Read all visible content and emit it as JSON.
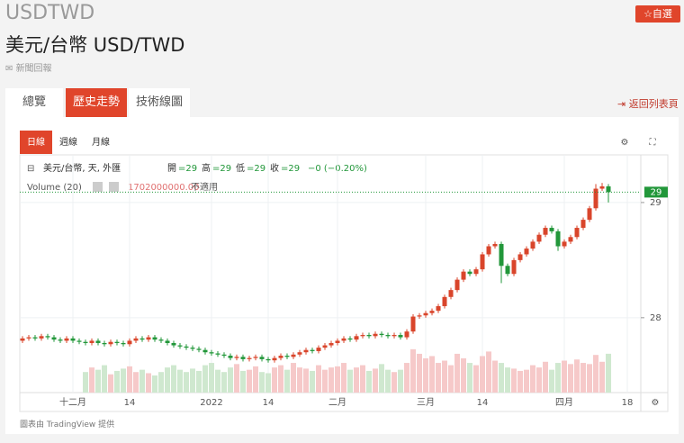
{
  "header": {
    "symbol": "USDTWD",
    "title": "美元/台幣 USD/TWD",
    "watch": "☆自選",
    "news": "新聞回報",
    "tabs": [
      "總覽",
      "歷史走勢",
      "技術線圖"
    ],
    "back": "返回列表頁"
  },
  "chart_data": {
    "type": "candlestick",
    "intervals": [
      "日線",
      "週線",
      "月線"
    ],
    "legend_name": "美元/台幣, 天, 外匯",
    "ohlc_labels": [
      {
        "key": "開",
        "value": "=29"
      },
      {
        "key": "高",
        "value": "=29"
      },
      {
        "key": "低",
        "value": "=29"
      },
      {
        "key": "收",
        "value": "=29"
      }
    ],
    "change": "−0 (−0.20%)",
    "volume_name": "Volume (20)",
    "volume_value": "1702000000.00",
    "volume_na": "不適用",
    "price_label": "29",
    "up_color": "#d9452b",
    "down_color": "#22973a",
    "volume_up_color": "#f6c9c9",
    "volume_down_color": "#cfe8cf",
    "grid": true,
    "xlim": [
      -0.43,
      98.14
    ],
    "xticks": [
      {
        "value": 8,
        "label": "十二月"
      },
      {
        "value": 17,
        "label": "14"
      },
      {
        "value": 30,
        "label": "2022"
      },
      {
        "value": 39,
        "label": "14"
      },
      {
        "value": 50,
        "label": "二月"
      },
      {
        "value": 64,
        "label": "三月"
      },
      {
        "value": 73,
        "label": "14"
      },
      {
        "value": 86,
        "label": "四月"
      },
      {
        "value": 96,
        "label": "18"
      }
    ],
    "ylim": [
      27.35,
      29.39
    ],
    "yticks": [
      28,
      29
    ],
    "vlim": [
      0,
      10300000000
    ],
    "open": [
      27.8,
      27.82,
      27.83,
      27.82,
      27.84,
      27.83,
      27.81,
      27.8,
      27.82,
      27.8,
      27.79,
      27.78,
      27.8,
      27.78,
      27.77,
      27.79,
      27.78,
      27.77,
      27.8,
      27.82,
      27.81,
      27.83,
      27.81,
      27.8,
      27.78,
      27.76,
      27.75,
      27.74,
      27.73,
      27.72,
      27.7,
      27.69,
      27.68,
      27.67,
      27.65,
      27.66,
      27.64,
      27.65,
      27.66,
      27.64,
      27.63,
      27.65,
      27.67,
      27.66,
      27.68,
      27.7,
      27.72,
      27.71,
      27.74,
      27.76,
      27.78,
      27.8,
      27.82,
      27.81,
      27.84,
      27.85,
      27.84,
      27.86,
      27.85,
      27.84,
      27.85,
      27.83,
      27.88,
      28.01,
      28.02,
      28.04,
      28.06,
      28.1,
      28.18,
      28.24,
      28.33,
      28.4,
      28.38,
      28.42,
      28.55,
      28.62,
      28.64,
      28.45,
      28.38,
      28.5,
      28.55,
      28.6,
      28.66,
      28.72,
      28.78,
      28.75,
      28.62,
      28.66,
      28.7,
      28.78,
      28.85,
      28.95,
      29.12,
      29.14
    ],
    "high": [
      27.84,
      27.85,
      27.85,
      27.86,
      27.86,
      27.85,
      27.83,
      27.84,
      27.84,
      27.82,
      27.81,
      27.82,
      27.82,
      27.8,
      27.81,
      27.81,
      27.8,
      27.82,
      27.84,
      27.84,
      27.85,
      27.85,
      27.83,
      27.82,
      27.8,
      27.78,
      27.77,
      27.76,
      27.75,
      27.74,
      27.72,
      27.71,
      27.7,
      27.69,
      27.68,
      27.68,
      27.67,
      27.68,
      27.68,
      27.66,
      27.67,
      27.69,
      27.69,
      27.7,
      27.72,
      27.74,
      27.74,
      27.76,
      27.78,
      27.8,
      27.82,
      27.84,
      27.84,
      27.86,
      27.87,
      27.87,
      27.88,
      27.88,
      27.87,
      27.87,
      27.87,
      27.9,
      28.03,
      28.04,
      28.06,
      28.08,
      28.12,
      28.2,
      28.26,
      28.35,
      28.42,
      28.42,
      28.44,
      28.57,
      28.64,
      28.66,
      28.66,
      28.47,
      28.52,
      28.57,
      28.62,
      28.68,
      28.74,
      28.8,
      28.8,
      28.77,
      28.68,
      28.72,
      28.8,
      28.87,
      28.97,
      29.16,
      29.17,
      29.16
    ],
    "low": [
      27.78,
      27.8,
      27.8,
      27.8,
      27.81,
      27.79,
      27.78,
      27.78,
      27.78,
      27.77,
      27.76,
      27.76,
      27.76,
      27.75,
      27.75,
      27.76,
      27.75,
      27.75,
      27.78,
      27.79,
      27.79,
      27.79,
      27.78,
      27.76,
      27.74,
      27.73,
      27.72,
      27.71,
      27.7,
      27.68,
      27.67,
      27.66,
      27.65,
      27.63,
      27.63,
      27.62,
      27.62,
      27.63,
      27.62,
      27.61,
      27.61,
      27.63,
      27.64,
      27.64,
      27.66,
      27.68,
      27.69,
      27.69,
      27.72,
      27.74,
      27.76,
      27.78,
      27.79,
      27.79,
      27.82,
      27.82,
      27.82,
      27.83,
      27.82,
      27.82,
      27.81,
      27.81,
      27.86,
      27.99,
      28.0,
      28.02,
      28.04,
      28.08,
      28.16,
      28.22,
      28.31,
      28.36,
      28.36,
      28.4,
      28.53,
      28.6,
      28.3,
      28.36,
      28.36,
      28.48,
      28.53,
      28.58,
      28.64,
      28.7,
      28.73,
      28.58,
      28.6,
      28.64,
      28.68,
      28.76,
      28.83,
      28.93,
      29.1,
      29.0
    ],
    "close": [
      27.82,
      27.83,
      27.82,
      27.84,
      27.83,
      27.81,
      27.8,
      27.82,
      27.8,
      27.79,
      27.78,
      27.8,
      27.78,
      27.77,
      27.79,
      27.78,
      27.77,
      27.8,
      27.82,
      27.81,
      27.83,
      27.81,
      27.8,
      27.78,
      27.76,
      27.75,
      27.74,
      27.73,
      27.72,
      27.7,
      27.69,
      27.68,
      27.67,
      27.65,
      27.66,
      27.64,
      27.65,
      27.66,
      27.64,
      27.63,
      27.65,
      27.67,
      27.66,
      27.68,
      27.7,
      27.72,
      27.71,
      27.74,
      27.76,
      27.78,
      27.8,
      27.82,
      27.81,
      27.84,
      27.85,
      27.84,
      27.86,
      27.85,
      27.84,
      27.85,
      27.83,
      27.88,
      28.01,
      28.02,
      28.04,
      28.06,
      28.1,
      28.18,
      28.24,
      28.33,
      28.4,
      28.38,
      28.42,
      28.55,
      28.62,
      28.64,
      28.45,
      28.38,
      28.5,
      28.55,
      28.6,
      28.66,
      28.72,
      28.78,
      28.75,
      28.62,
      28.66,
      28.7,
      28.78,
      28.85,
      28.95,
      29.12,
      29.14,
      29.09
    ],
    "volume": [
      null,
      null,
      null,
      null,
      null,
      null,
      null,
      null,
      null,
      null,
      900000000,
      1100000000,
      1000000000,
      1200000000,
      800000000,
      950000000,
      1050000000,
      1150000000,
      900000000,
      1000000000,
      850000000,
      750000000,
      900000000,
      1100000000,
      1200000000,
      1000000000,
      900000000,
      1050000000,
      950000000,
      1200000000,
      1300000000,
      1000000000,
      900000000,
      1100000000,
      1250000000,
      950000000,
      1000000000,
      1150000000,
      900000000,
      850000000,
      1100000000,
      1200000000,
      1000000000,
      1300000000,
      1100000000,
      1050000000,
      950000000,
      1200000000,
      1000000000,
      1100000000,
      1150000000,
      1300000000,
      1000000000,
      1100000000,
      1200000000,
      950000000,
      1050000000,
      1250000000,
      1000000000,
      900000000,
      1000000000,
      1300000000,
      1900000000,
      1700000000,
      1500000000,
      1600000000,
      1300000000,
      1400000000,
      1200000000,
      1700000000,
      1500000000,
      1300000000,
      1200000000,
      1600000000,
      1800000000,
      1400000000,
      1300000000,
      1100000000,
      1050000000,
      950000000,
      1000000000,
      1200000000,
      1100000000,
      1350000000,
      1000000000,
      1300000000,
      1400000000,
      1250000000,
      1450000000,
      1300000000,
      1250000000,
      1650000000,
      1350000000,
      1702000000
    ]
  },
  "footer": "圖表由 TradingView 提供"
}
